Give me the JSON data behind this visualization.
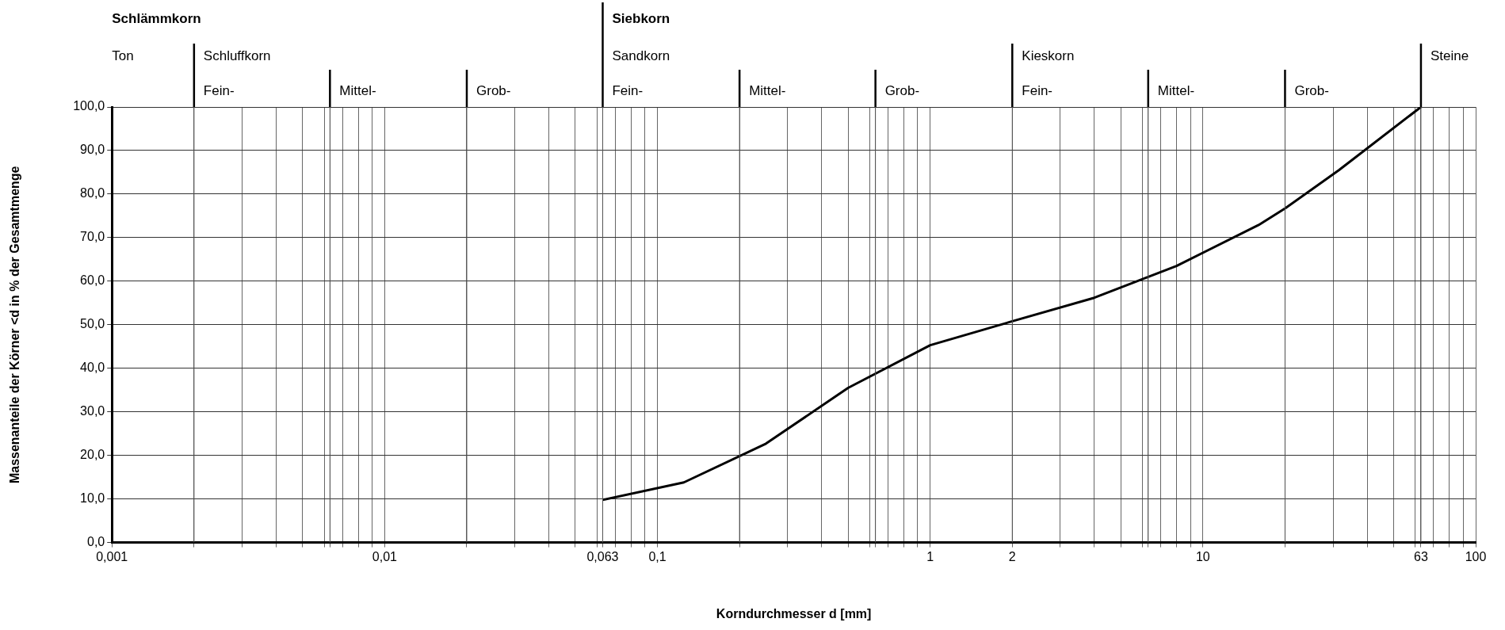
{
  "chart_data": {
    "type": "line",
    "xlabel": "Korndurchmesser d [mm]",
    "ylabel": "Massenanteile der Körner <d in % der Gesamtmenge",
    "x": [
      0.063,
      0.125,
      0.25,
      0.5,
      1,
      2,
      4,
      8,
      16,
      20,
      31.5,
      63
    ],
    "series": [
      {
        "color": "#000000",
        "values": [
          9.8,
          13.8,
          22.7,
          35.5,
          45.3,
          50.8,
          56.2,
          63.5,
          72.9,
          76.7,
          85.5,
          100
        ]
      }
    ],
    "log": "x",
    "xlim": [
      0.001,
      100
    ],
    "ylim": [
      0,
      100
    ],
    "xticks": [
      {
        "value": 0.001,
        "label": "0,001"
      },
      {
        "value": 0.002,
        "label": null
      },
      {
        "value": 0.003,
        "label": null
      },
      {
        "value": 0.004,
        "label": null
      },
      {
        "value": 0.005,
        "label": null
      },
      {
        "value": 0.006,
        "label": null
      },
      {
        "value": 0.0063,
        "label": null
      },
      {
        "value": 0.007,
        "label": null
      },
      {
        "value": 0.008,
        "label": null
      },
      {
        "value": 0.009,
        "label": null
      },
      {
        "value": 0.01,
        "label": "0,01"
      },
      {
        "value": 0.02,
        "label": null
      },
      {
        "value": 0.03,
        "label": null
      },
      {
        "value": 0.04,
        "label": null
      },
      {
        "value": 0.05,
        "label": null
      },
      {
        "value": 0.06,
        "label": null
      },
      {
        "value": 0.063,
        "label": "0,063"
      },
      {
        "value": 0.07,
        "label": null
      },
      {
        "value": 0.08,
        "label": null
      },
      {
        "value": 0.09,
        "label": null
      },
      {
        "value": 0.1,
        "label": "0,1"
      },
      {
        "value": 0.2,
        "label": null
      },
      {
        "value": 0.3,
        "label": null
      },
      {
        "value": 0.4,
        "label": null
      },
      {
        "value": 0.5,
        "label": null
      },
      {
        "value": 0.6,
        "label": null
      },
      {
        "value": 0.63,
        "label": null
      },
      {
        "value": 0.7,
        "label": null
      },
      {
        "value": 0.8,
        "label": null
      },
      {
        "value": 0.9,
        "label": null
      },
      1,
      2,
      {
        "value": 3,
        "label": null
      },
      {
        "value": 4,
        "label": null
      },
      {
        "value": 5,
        "label": null
      },
      {
        "value": 6,
        "label": null
      },
      {
        "value": 6.3,
        "label": null
      },
      {
        "value": 7,
        "label": null
      },
      {
        "value": 8,
        "label": null
      },
      {
        "value": 9,
        "label": null
      },
      10,
      {
        "value": 20,
        "label": null
      },
      {
        "value": 30,
        "label": null
      },
      {
        "value": 40,
        "label": null
      },
      {
        "value": 50,
        "label": null
      },
      {
        "value": 60,
        "label": null
      },
      63,
      {
        "value": 70,
        "label": null
      },
      {
        "value": 80,
        "label": null
      },
      {
        "value": 90,
        "label": null
      },
      100
    ],
    "yticks": [
      {
        "value": 0,
        "label": "0,0"
      },
      {
        "value": 10,
        "label": "10,0"
      },
      {
        "value": 20,
        "label": "20,0"
      },
      {
        "value": 30,
        "label": "30,0"
      },
      {
        "value": 40,
        "label": "40,0"
      },
      {
        "value": 50,
        "label": "50,0"
      },
      {
        "value": 60,
        "label": "60,0"
      },
      {
        "value": 70,
        "label": "70,0"
      },
      {
        "value": 80,
        "label": "80,0"
      },
      {
        "value": 90,
        "label": "90,0"
      },
      {
        "value": 100,
        "label": "100,0"
      }
    ],
    "grid": true,
    "marker": "none",
    "annotations": [
      "Schlämmkorn",
      "Ton",
      {
        "text": "Schluffkorn",
        "x": 0.002
      },
      {
        "text": "Siebkorn",
        "x": 0.063
      },
      {
        "text": "Sandkorn",
        "x": 0.063
      },
      {
        "text": "Kieskorn",
        "x": 2
      }
    ],
    "ref_lines": [
      {
        "axis": "x",
        "value": 0.002,
        "label": "Fein-"
      },
      {
        "axis": "x",
        "value": 0.0063,
        "label": "Mittel-"
      },
      {
        "axis": "x",
        "value": 0.02,
        "label": "Grob-"
      },
      {
        "axis": "x",
        "value": 0.063,
        "label": "Fein-"
      },
      {
        "axis": "x",
        "value": 0.2,
        "label": "Mittel-"
      },
      {
        "axis": "x",
        "value": 0.63,
        "label": "Grob-"
      },
      {
        "axis": "x",
        "value": 2,
        "label": "Fein-"
      },
      {
        "axis": "x",
        "value": 6.3,
        "label": "Mittel-"
      },
      {
        "axis": "x",
        "value": 20,
        "label": "Grob-"
      },
      {
        "axis": "x",
        "value": 63,
        "label": "Steine"
      }
    ]
  }
}
